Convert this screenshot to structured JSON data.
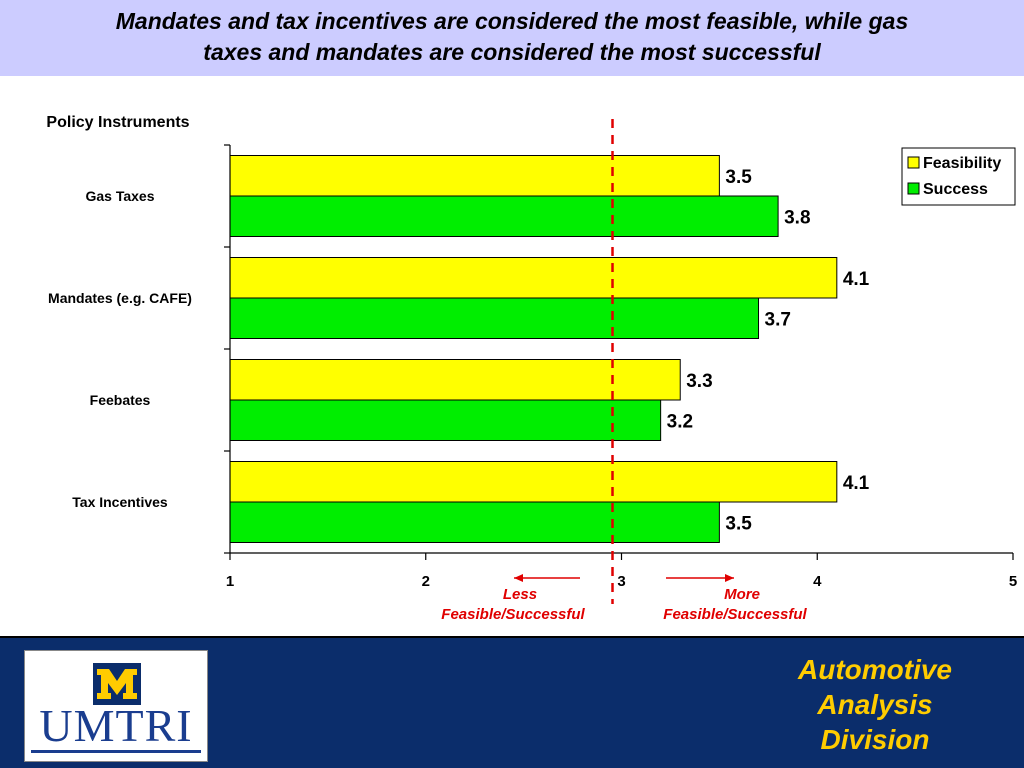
{
  "title": {
    "line1": "Mandates and tax incentives are considered the most feasible, while gas",
    "line2": "taxes and mandates are considered the most successful"
  },
  "chart_data": {
    "type": "bar",
    "orientation": "horizontal",
    "ylabel": "Policy Instruments",
    "categories": [
      "Gas Taxes",
      "Mandates (e.g. CAFE)",
      "Feebates",
      "Tax Incentives"
    ],
    "series": [
      {
        "name": "Feasibility",
        "color": "#ffff00",
        "values": [
          3.5,
          4.1,
          3.3,
          4.1
        ]
      },
      {
        "name": "Success",
        "color": "#00ee00",
        "values": [
          3.8,
          3.7,
          3.2,
          3.5
        ]
      }
    ],
    "xlim": [
      1,
      5
    ],
    "xticks": [
      1,
      2,
      3,
      4,
      5
    ],
    "reference_line": {
      "x": 3,
      "color": "#e00000",
      "style": "dashed"
    },
    "legend": {
      "position": "top-right"
    },
    "grid": false,
    "annotations": {
      "less": [
        "Less",
        "Feasible/Successful"
      ],
      "more": [
        "More",
        "Feasible/Successful"
      ],
      "color": "#e00000"
    }
  },
  "footer": {
    "logo_text": "UMTRI",
    "logo_mark": "M",
    "division_lines": [
      "Automotive",
      "Analysis",
      "Division"
    ]
  }
}
